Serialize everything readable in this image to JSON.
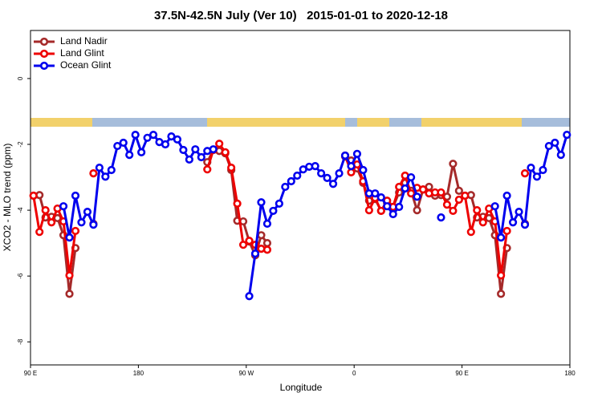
{
  "chart_data": {
    "type": "line",
    "title": "37.5N-42.5N July (Ver 10)   2015-01-01 to 2020-12-18",
    "x_label": "Longitude",
    "y_label": "XCO2 - MLO trend (ppm)",
    "xlim": [
      90,
      540
    ],
    "ylim": [
      -8.7,
      1.46
    ],
    "xticks": [
      {
        "value": 90,
        "label": "90 E"
      },
      180,
      {
        "value": 270,
        "label": "90 W"
      },
      {
        "value": 360,
        "label": "0"
      },
      {
        "value": 450,
        "label": "90 E"
      },
      {
        "value": 540,
        "label": "180"
      }
    ],
    "yticks": [
      0,
      -2,
      -4,
      -6,
      -8
    ],
    "grid": false,
    "legend": "top-left",
    "x": [
      92.5,
      97.5,
      102.5,
      107.5,
      112.5,
      117.5,
      122.5,
      127.5,
      132.5,
      137.5,
      142.5,
      147.5,
      152.5,
      157.5,
      162.5,
      167.5,
      172.5,
      177.5,
      182.5,
      187.5,
      192.5,
      197.5,
      202.5,
      207.5,
      212.5,
      217.5,
      222.5,
      227.5,
      232.5,
      237.5,
      242.5,
      247.5,
      252.5,
      257.5,
      262.5,
      267.5,
      272.5,
      277.5,
      282.5,
      287.5,
      292.5,
      297.5,
      302.5,
      307.5,
      312.5,
      317.5,
      322.5,
      327.5,
      332.5,
      337.5,
      342.5,
      347.5,
      352.5,
      357.5,
      362.5,
      367.5,
      372.5,
      377.5,
      382.5,
      387.5,
      392.5,
      397.5,
      402.5,
      407.5,
      412.5,
      417.5,
      422.5,
      427.5,
      432.5,
      437.5,
      442.5,
      447.5,
      452.5,
      457.5,
      462.5,
      467.5,
      472.5,
      477.5,
      482.5,
      487.5,
      492.5,
      497.5,
      502.5,
      507.5,
      512.5,
      517.5,
      522.5,
      527.5,
      532.5,
      537.5
    ],
    "series": [
      {
        "name": "Land Nadir",
        "color": "#a52a2a",
        "values": [
          -3.56,
          -3.54,
          -4.22,
          -4.2,
          -4.24,
          -4.76,
          -6.54,
          -5.15,
          null,
          null,
          -4.41,
          null,
          null,
          null,
          null,
          null,
          null,
          null,
          null,
          null,
          null,
          null,
          null,
          null,
          null,
          null,
          null,
          null,
          null,
          -2.54,
          -2.17,
          -2.2,
          -2.27,
          -2.78,
          -4.32,
          -4.34,
          -4.95,
          -5.37,
          -4.76,
          -5.0,
          null,
          null,
          null,
          null,
          null,
          null,
          null,
          null,
          null,
          null,
          null,
          null,
          -2.37,
          -2.49,
          -2.73,
          -3.17,
          -3.71,
          -3.66,
          -4.02,
          -3.78,
          -3.9,
          -3.46,
          -3.17,
          -3.41,
          -4.0,
          -3.37,
          -3.29,
          -3.56,
          -3.54,
          -3.59,
          -2.59,
          -3.41,
          -3.56,
          -3.54,
          -4.22,
          -4.2,
          -4.24,
          -4.76,
          -6.54,
          -5.15,
          null,
          null,
          -4.41,
          null,
          null,
          null,
          null,
          null,
          null,
          null
        ]
      },
      {
        "name": "Land Glint",
        "color": "#ee0000",
        "values": [
          -3.56,
          -4.66,
          -4.0,
          -4.37,
          -3.95,
          -4.34,
          -5.98,
          -4.63,
          null,
          null,
          -2.88,
          null,
          null,
          null,
          null,
          null,
          null,
          null,
          null,
          null,
          null,
          null,
          null,
          null,
          null,
          null,
          null,
          null,
          null,
          -2.76,
          -2.17,
          -1.98,
          -2.24,
          -2.71,
          -3.8,
          -5.05,
          -4.93,
          -5.05,
          -5.17,
          -5.2,
          null,
          null,
          null,
          null,
          null,
          null,
          null,
          null,
          null,
          null,
          null,
          null,
          -2.34,
          -2.85,
          -2.61,
          -3.12,
          -4.0,
          -3.63,
          -4.02,
          -3.71,
          -3.9,
          -3.29,
          -2.95,
          -3.49,
          -3.32,
          -3.37,
          -3.49,
          -3.46,
          -3.46,
          -3.83,
          -4.02,
          -3.68,
          -3.56,
          -4.66,
          -4.0,
          -4.37,
          -3.95,
          -4.34,
          -5.98,
          -4.63,
          null,
          null,
          -2.88,
          null,
          null,
          null,
          null,
          null,
          null,
          null
        ]
      },
      {
        "name": "Ocean Glint",
        "color": "#0000ee",
        "values": [
          null,
          null,
          null,
          null,
          null,
          -3.88,
          -4.83,
          -3.56,
          -4.37,
          -4.05,
          -4.44,
          -2.71,
          -2.98,
          -2.78,
          -2.05,
          -1.95,
          -2.32,
          -1.71,
          -2.24,
          -1.8,
          -1.71,
          -1.93,
          -2.0,
          -1.76,
          -1.85,
          -2.17,
          -2.46,
          -2.15,
          -2.39,
          -2.2,
          -2.15,
          null,
          null,
          null,
          null,
          null,
          -6.61,
          -5.32,
          -3.76,
          -4.41,
          -4.02,
          -3.8,
          -3.29,
          -3.12,
          -2.95,
          -2.76,
          -2.68,
          -2.66,
          -2.88,
          -3.02,
          -3.2,
          -2.88,
          -2.34,
          -2.66,
          -2.29,
          -2.78,
          -3.49,
          -3.49,
          -3.61,
          -3.88,
          -4.12,
          -3.9,
          -3.34,
          -3.0,
          -3.59,
          null,
          null,
          null,
          -4.22,
          null,
          null,
          null,
          null,
          null,
          null,
          null,
          null,
          -3.88,
          -4.83,
          -3.56,
          -4.37,
          -4.05,
          -4.44,
          -2.71,
          -2.98,
          -2.78,
          -2.05,
          -1.95,
          -2.32,
          -1.71
        ]
      }
    ]
  }
}
